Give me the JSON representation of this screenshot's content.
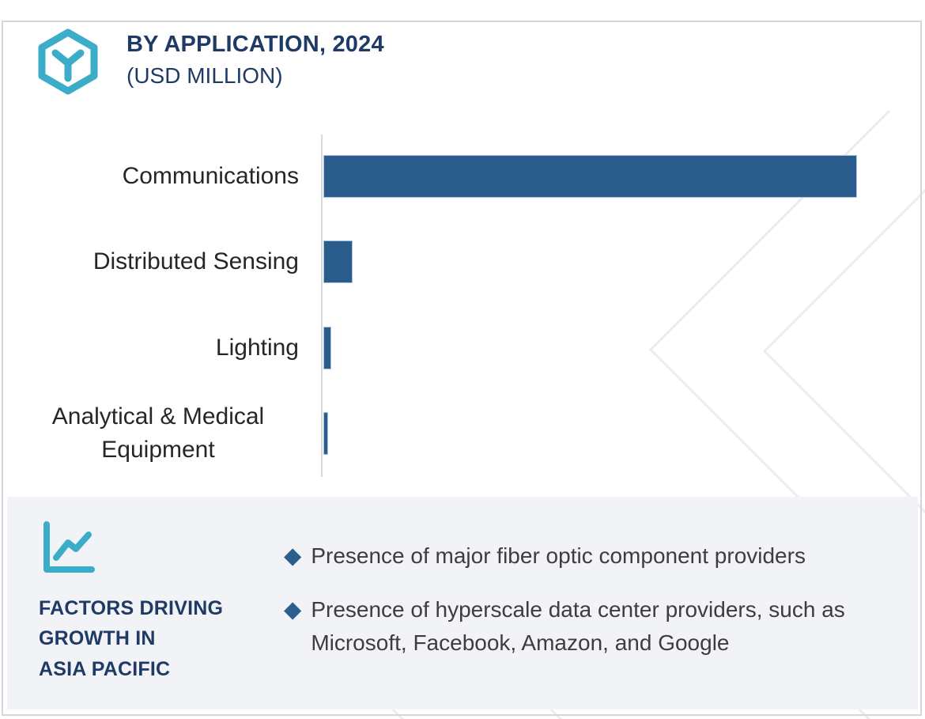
{
  "header": {
    "title": "BY APPLICATION, 2024",
    "subtitle": "(USD MILLION)",
    "logo_icon": "hexagon-y-logo-icon"
  },
  "chart_data": {
    "type": "bar",
    "orientation": "horizontal",
    "title": "BY APPLICATION, 2024 (USD MILLION)",
    "categories": [
      "Communications",
      "Distributed Sensing",
      "Lighting",
      "Analytical & Medical Equipment"
    ],
    "values_pct_of_max": [
      100,
      5.5,
      1.5,
      0.9
    ],
    "xlabel": "",
    "ylabel": "",
    "units": "USD Million",
    "axis_tick_labels_visible": false,
    "data_labels_visible": false,
    "grid": false,
    "legend": false,
    "bar_color": "#2a5d8c"
  },
  "factors": {
    "icon": "trend-chart-icon",
    "heading": "FACTORS DRIVING\nGROWTH IN\nASIA PACIFIC",
    "bullets": [
      "Presence of major fiber optic component providers",
      "Presence of hyperscale data center providers, such as Microsoft, Facebook, Amazon, and Google"
    ]
  },
  "colors": {
    "navy": "#203a66",
    "teal": "#3badc9",
    "bar_blue": "#2a5d8c",
    "diamond_blue": "#2d5f8d",
    "panel_gray": "#f2f3f7",
    "label_text": "#262626",
    "body_text": "#3d3d3d",
    "axis_line": "#d9d9d9",
    "watermark": "#ededf0",
    "border": "#d3d6dd"
  }
}
